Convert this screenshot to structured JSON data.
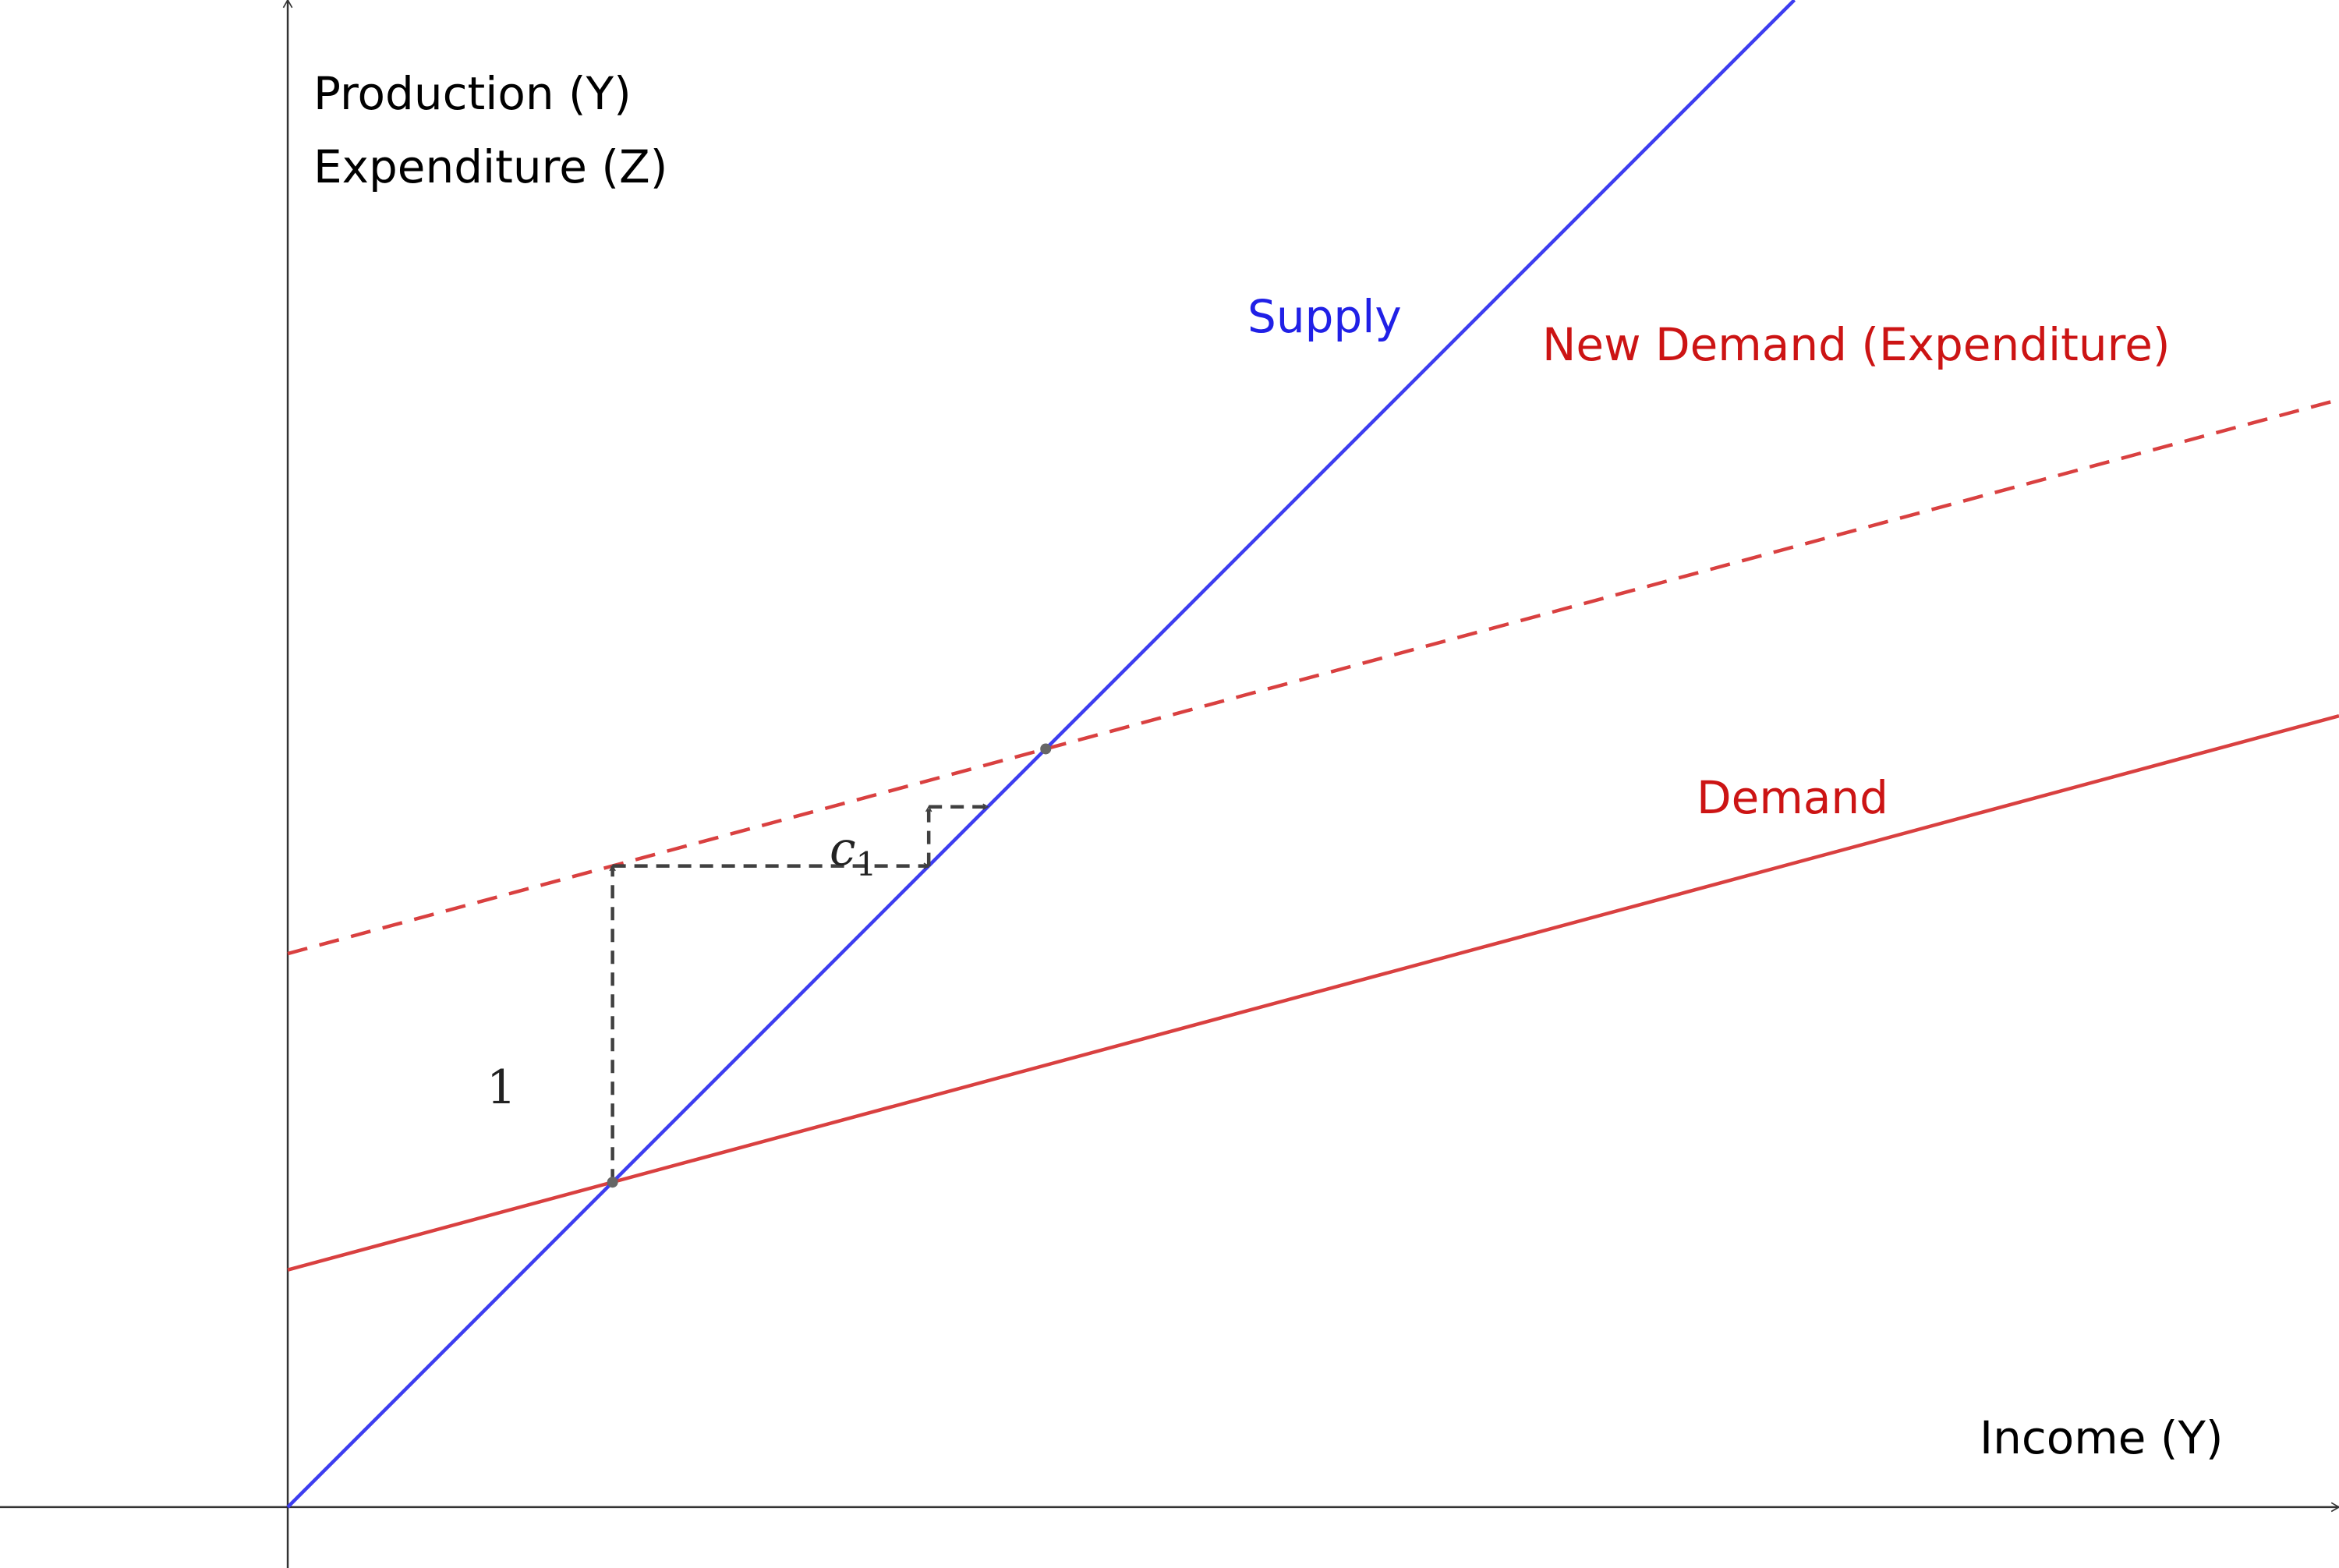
{
  "labels": {
    "y_axis_line1": "Production (Y)",
    "y_axis_line2": "Expenditure (Z)",
    "x_axis": "Income (Y)",
    "supply": "Supply",
    "new_demand": "New Demand (Expenditure)",
    "demand": "Demand",
    "step_one": "1",
    "step_c_base": "c",
    "step_c_sub": "1"
  },
  "colors": {
    "supply": "#3d3df0",
    "supply_label": "#2020e6",
    "demand": "#d94040",
    "demand_label": "#cc1414",
    "axis": "#333333",
    "guide": "#404040",
    "point": "#666666"
  },
  "diagram": {
    "type": "keynesian-cross",
    "supply": {
      "intercept": 0,
      "slope": 1
    },
    "demand": {
      "intercept": 0.3,
      "slope": 0.27
    },
    "new_demand": {
      "intercept": 0.7,
      "slope": 0.27,
      "style": "dashed"
    },
    "equilibria": [
      {
        "name": "original",
        "y": 0.4109
      },
      {
        "name": "new",
        "y": 0.9589
      }
    ],
    "multiplier_steps": [
      {
        "name": "step-1",
        "label": "1",
        "from_y": 0.4109,
        "to_y": 0.8109
      },
      {
        "name": "step-c1",
        "label": "c1",
        "from_y": 0.8109,
        "to_y": 0.8857
      }
    ],
    "x_range": [
      -0.364,
      2.595
    ],
    "y_range": [
      -0.077,
      1.906
    ]
  }
}
